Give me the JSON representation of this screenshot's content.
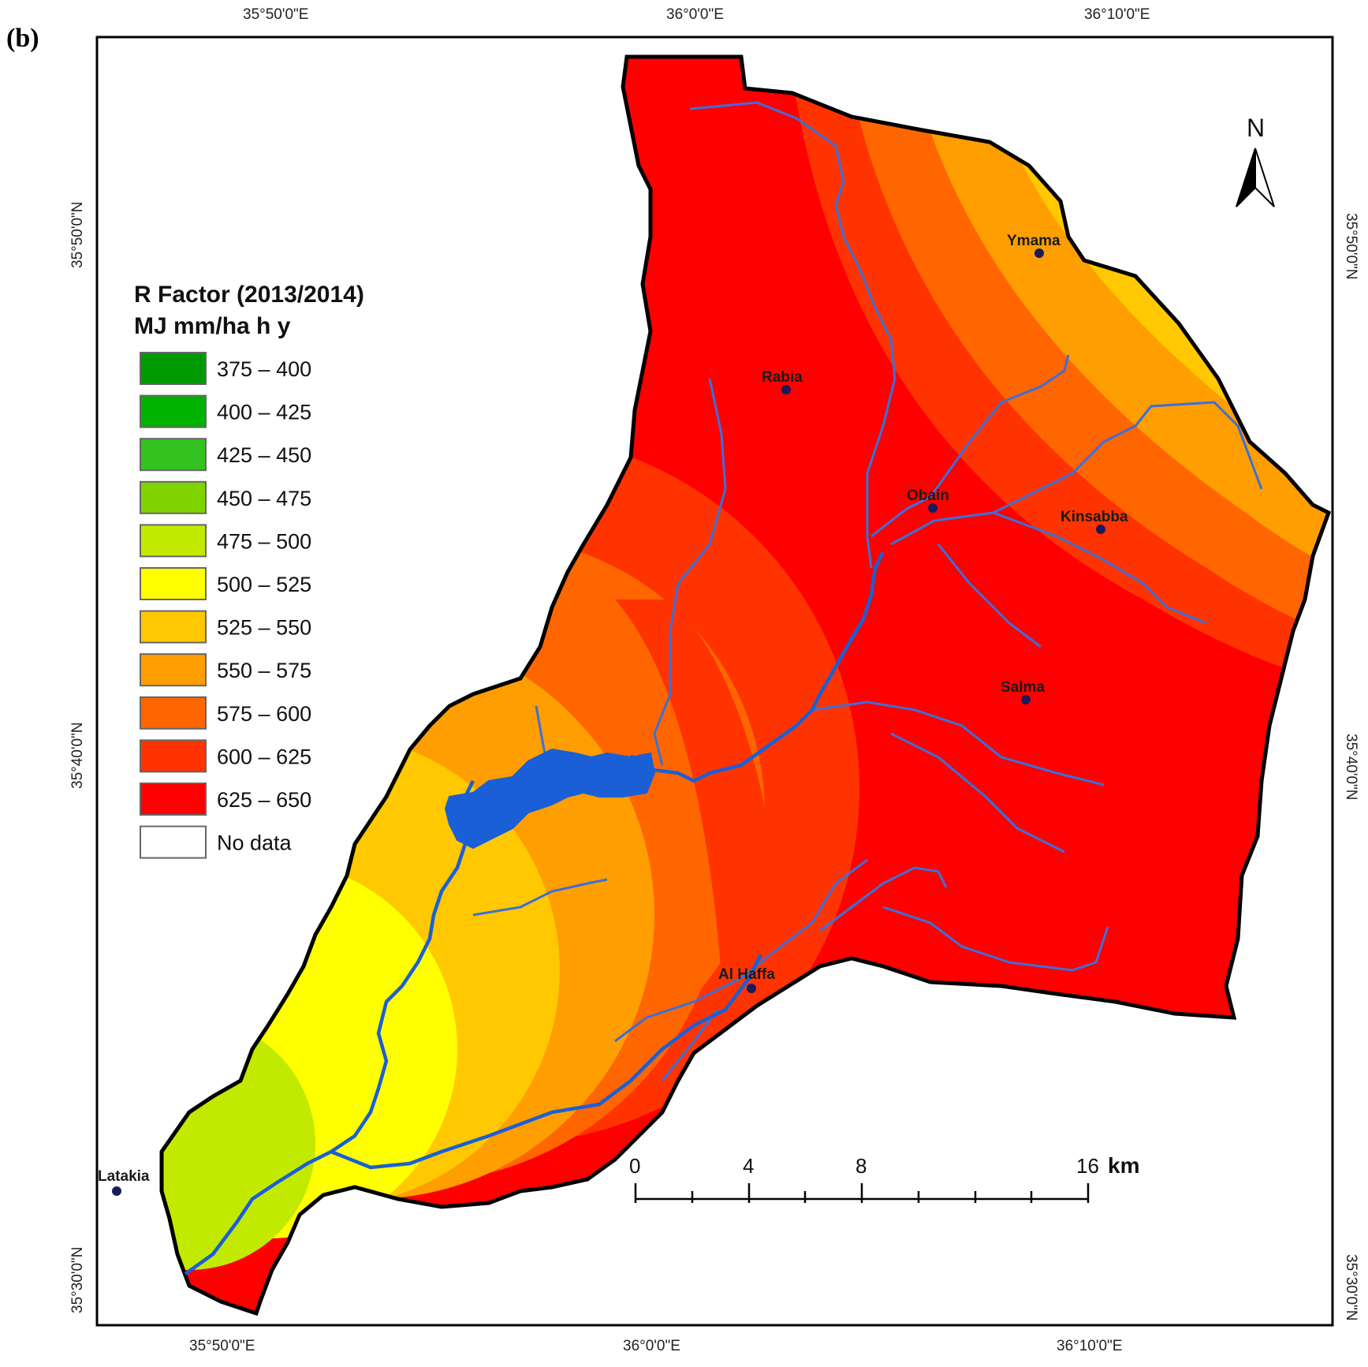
{
  "figure_label": "(b)",
  "legend": {
    "title_line1": "R Factor (2013/2014)",
    "title_line2": "MJ mm/ha h y",
    "classes": [
      {
        "label": "375 – 400",
        "color": "#009900"
      },
      {
        "label": "400 – 425",
        "color": "#00b300"
      },
      {
        "label": "425 – 450",
        "color": "#33c21f"
      },
      {
        "label": "450 – 475",
        "color": "#7fd400"
      },
      {
        "label": "475 – 500",
        "color": "#c2ea00"
      },
      {
        "label": "500 – 525",
        "color": "#ffff00"
      },
      {
        "label": "525 – 550",
        "color": "#ffc800"
      },
      {
        "label": "550 – 575",
        "color": "#ff9e00"
      },
      {
        "label": "575 – 600",
        "color": "#ff6600"
      },
      {
        "label": "600 – 625",
        "color": "#ff3300"
      },
      {
        "label": "625 – 650",
        "color": "#ff0000"
      },
      {
        "label": "No data",
        "color": "#ffffff"
      }
    ]
  },
  "coords": {
    "top": [
      "35°50'0\"E",
      "36°0'0\"E",
      "36°10'0\"E"
    ],
    "bottom": [
      "35°50'0\"E",
      "36°0'0\"E",
      "36°10'0\"E"
    ],
    "left": [
      "35°50'0\"N",
      "35°40'0\"N",
      "35°30'0\"N"
    ],
    "right": [
      "35°50'0\"N",
      "35°40'0\"N",
      "35°30'0\"N"
    ]
  },
  "towns": [
    {
      "name": "Ymama"
    },
    {
      "name": "Rabia"
    },
    {
      "name": "Obain"
    },
    {
      "name": "Kinsabba"
    },
    {
      "name": "Salma"
    },
    {
      "name": "Al Haffa"
    },
    {
      "name": "Latakia"
    }
  ],
  "scale_bar": {
    "ticks": [
      "0",
      "4",
      "8",
      "16"
    ],
    "unit": "km"
  },
  "north_arrow": {
    "label": "N",
    "icon": "north-arrow-icon"
  },
  "colors": {
    "river": "#1a5fd6",
    "tributary": "#3d6fd8",
    "reservoir": "#1a5fd6",
    "border": "#000000",
    "town_dot": "#1a1a5c"
  }
}
